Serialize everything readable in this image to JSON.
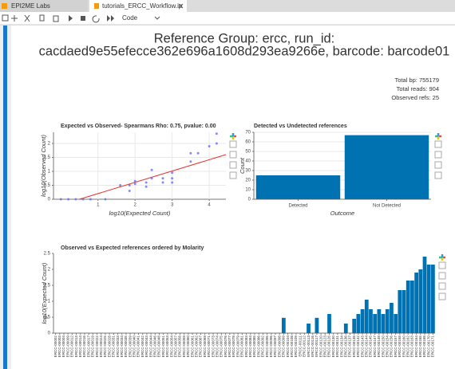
{
  "tabs": [
    "EPI2ME Labs",
    "tutorials_ERCC_Workflow.ip"
  ],
  "toolbar": {
    "cell_type": "Code"
  },
  "header": {
    "title_lines": [
      "Reference Group: ercc, run_id:",
      "cacdaed9e55efecce362e696a1608d293ea9266e, barcode: barcode01"
    ]
  },
  "stats": [
    "Total bp: 755179",
    "Total reads: 904",
    "Observed refs: 25"
  ],
  "chart_data": [
    {
      "type": "scatter",
      "title": "Expected vs Observed- Spearmans Rho: 0.75, pvalue: 0.00",
      "x_label": "log10(Expected Count)",
      "y_label": "log10(Observed Count)",
      "color": "#6b6bff",
      "x": [
        0,
        0.2,
        0.4,
        0.6,
        0.8,
        1.2,
        1.6,
        1.85,
        1.85,
        2.0,
        2.0,
        2.3,
        2.3,
        2.45,
        2.45,
        2.75,
        2.75,
        3.0,
        3.0,
        3.0,
        3.5,
        3.5,
        3.7,
        4.0,
        4.2,
        4.2
      ],
      "values": [
        0,
        0,
        0,
        0,
        0,
        0,
        0.5,
        0.3,
        0.5,
        0.55,
        0.65,
        0.45,
        0.6,
        0.75,
        1.05,
        0.6,
        0.75,
        0.6,
        0.75,
        0.95,
        1.35,
        1.65,
        1.65,
        1.9,
        2.0,
        2.35
      ],
      "fit": {
        "color": "#e8302a",
        "x": [
          0.5,
          4.45
        ],
        "values": [
          0,
          1.6
        ]
      },
      "xlim": [
        -0.2,
        4.45
      ],
      "xticks": [
        1,
        2,
        3,
        4
      ],
      "ylim": [
        0,
        2.4
      ],
      "yticks": [
        0,
        0.5,
        1,
        1.5,
        2
      ],
      "grid": true
    },
    {
      "type": "bar",
      "title": "Detected vs Undetected references",
      "x_label": "Outcome",
      "y_label": "Count",
      "color": "#0072b2",
      "categories": [
        "Detected",
        "Not Detected"
      ],
      "values": [
        25,
        67
      ],
      "ylim": [
        0,
        70
      ],
      "yticks": [
        0,
        10,
        20,
        30,
        40,
        50,
        60,
        70
      ],
      "grid": true
    },
    {
      "type": "bar",
      "title": "Observed vs Expected references ordered by Molarity",
      "y_label": "log10(Expected Count)",
      "color": "#0072b2",
      "categories": [
        "ERCC-00002",
        "ERCC-00003",
        "ERCC-00004",
        "ERCC-00009",
        "ERCC-00012",
        "ERCC-00013",
        "ERCC-00014",
        "ERCC-00016",
        "ERCC-00017",
        "ERCC-00019",
        "ERCC-00022",
        "ERCC-00024",
        "ERCC-00025",
        "ERCC-00028",
        "ERCC-00031",
        "ERCC-00033",
        "ERCC-00034",
        "ERCC-00035",
        "ERCC-00039",
        "ERCC-00040",
        "ERCC-00041",
        "ERCC-00042",
        "ERCC-00043",
        "ERCC-00044",
        "ERCC-00046",
        "ERCC-00048",
        "ERCC-00051",
        "ERCC-00053",
        "ERCC-00054",
        "ERCC-00057",
        "ERCC-00058",
        "ERCC-00059",
        "ERCC-00060",
        "ERCC-00061",
        "ERCC-00062",
        "ERCC-00067",
        "ERCC-00069",
        "ERCC-00071",
        "ERCC-00073",
        "ERCC-00074",
        "ERCC-00075",
        "ERCC-00076",
        "ERCC-00077",
        "ERCC-00078",
        "ERCC-00079",
        "ERCC-00081",
        "ERCC-00083",
        "ERCC-00084",
        "ERCC-00085",
        "ERCC-00086",
        "ERCC-00092",
        "ERCC-00095",
        "ERCC-00096",
        "ERCC-00097",
        "ERCC-00098",
        "ERCC-00099",
        "ERCC-00104",
        "ERCC-00108",
        "ERCC-00109",
        "ERCC-00111",
        "ERCC-00112",
        "ERCC-00113",
        "ERCC-00116",
        "ERCC-00117",
        "ERCC-00120",
        "ERCC-00123",
        "ERCC-00126",
        "ERCC-00130",
        "ERCC-00131",
        "ERCC-00134",
        "ERCC-00136",
        "ERCC-00137",
        "ERCC-00138",
        "ERCC-00142",
        "ERCC-00143",
        "ERCC-00144",
        "ERCC-00145",
        "ERCC-00147",
        "ERCC-00148",
        "ERCC-00150",
        "ERCC-00154",
        "ERCC-00156",
        "ERCC-00157",
        "ERCC-00158",
        "ERCC-00160",
        "ERCC-00162",
        "ERCC-00163",
        "ERCC-00164",
        "ERCC-00165",
        "ERCC-00168",
        "ERCC-00170",
        "ERCC-00171"
      ],
      "values": [
        0,
        0,
        0,
        0,
        0,
        0,
        0,
        0,
        0,
        0,
        0,
        0,
        0,
        0,
        0,
        0,
        0,
        0,
        0,
        0,
        0,
        0,
        0,
        0,
        0,
        0,
        0,
        0,
        0,
        0,
        0,
        0,
        0,
        0,
        0,
        0,
        0,
        0,
        0,
        0,
        0,
        0,
        0,
        0,
        0,
        0,
        0,
        0,
        0,
        0,
        0,
        0,
        0,
        0,
        0,
        0.48,
        0,
        0,
        0,
        0,
        0,
        0.3,
        0,
        0.48,
        0,
        0,
        0.6,
        0,
        0,
        0,
        0.3,
        0,
        0.45,
        0.6,
        0.75,
        1.05,
        0.75,
        0.6,
        0.75,
        0.6,
        0.75,
        0.95,
        0.6,
        1.35,
        1.35,
        1.65,
        1.65,
        1.9,
        2.0,
        2.4,
        2.15,
        2.15
      ],
      "ylim": [
        0,
        2.5
      ],
      "yticks": [
        0,
        0.5,
        1,
        1.5,
        2,
        2.5
      ],
      "grid": false
    }
  ]
}
